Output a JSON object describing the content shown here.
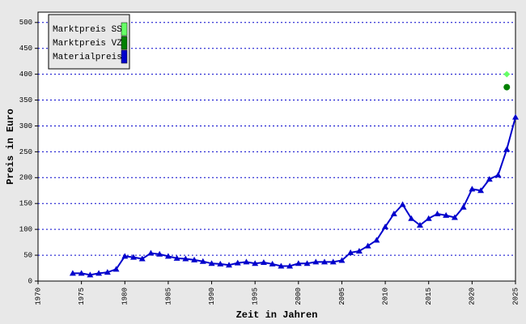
{
  "chart_data": {
    "type": "line",
    "x_label": "Zeit in Jahren",
    "y_label": "Preis in Euro",
    "xlim": [
      1970,
      2025
    ],
    "ylim": [
      0,
      520
    ],
    "xticks": [
      1970,
      1975,
      1980,
      1985,
      1990,
      1995,
      2000,
      2005,
      2010,
      2015,
      2020,
      2025
    ],
    "yticks": [
      0,
      50,
      100,
      150,
      200,
      250,
      300,
      350,
      400,
      450,
      500
    ],
    "grid": true,
    "legend": "top-left",
    "series": [
      {
        "name": "Marktpreis SS",
        "color": "#66ff66",
        "marker": "diamond",
        "x": [
          2024
        ],
        "values": [
          400
        ]
      },
      {
        "name": "Marktpreis VZ",
        "color": "#008000",
        "marker": "circle",
        "x": [
          2024
        ],
        "values": [
          375
        ]
      },
      {
        "name": "Materialpreis",
        "color": "#0000cc",
        "marker": "triangle",
        "x": [
          1974,
          1975,
          1976,
          1977,
          1978,
          1979,
          1980,
          1981,
          1982,
          1983,
          1984,
          1985,
          1986,
          1987,
          1988,
          1989,
          1990,
          1991,
          1992,
          1993,
          1994,
          1995,
          1996,
          1997,
          1998,
          1999,
          2000,
          2001,
          2002,
          2003,
          2004,
          2005,
          2006,
          2007,
          2008,
          2009,
          2010,
          2011,
          2012,
          2013,
          2014,
          2015,
          2016,
          2017,
          2018,
          2019,
          2020,
          2021,
          2022,
          2023,
          2024,
          2025
        ],
        "values": [
          15,
          15,
          12,
          15,
          17,
          23,
          48,
          46,
          43,
          54,
          52,
          48,
          44,
          43,
          41,
          38,
          34,
          33,
          31,
          35,
          37,
          34,
          36,
          33,
          29,
          29,
          34,
          34,
          37,
          37,
          37,
          40,
          55,
          58,
          68,
          79,
          105,
          130,
          148,
          121,
          108,
          121,
          130,
          127,
          123,
          143,
          178,
          175,
          197,
          205,
          255,
          317
        ]
      }
    ]
  }
}
